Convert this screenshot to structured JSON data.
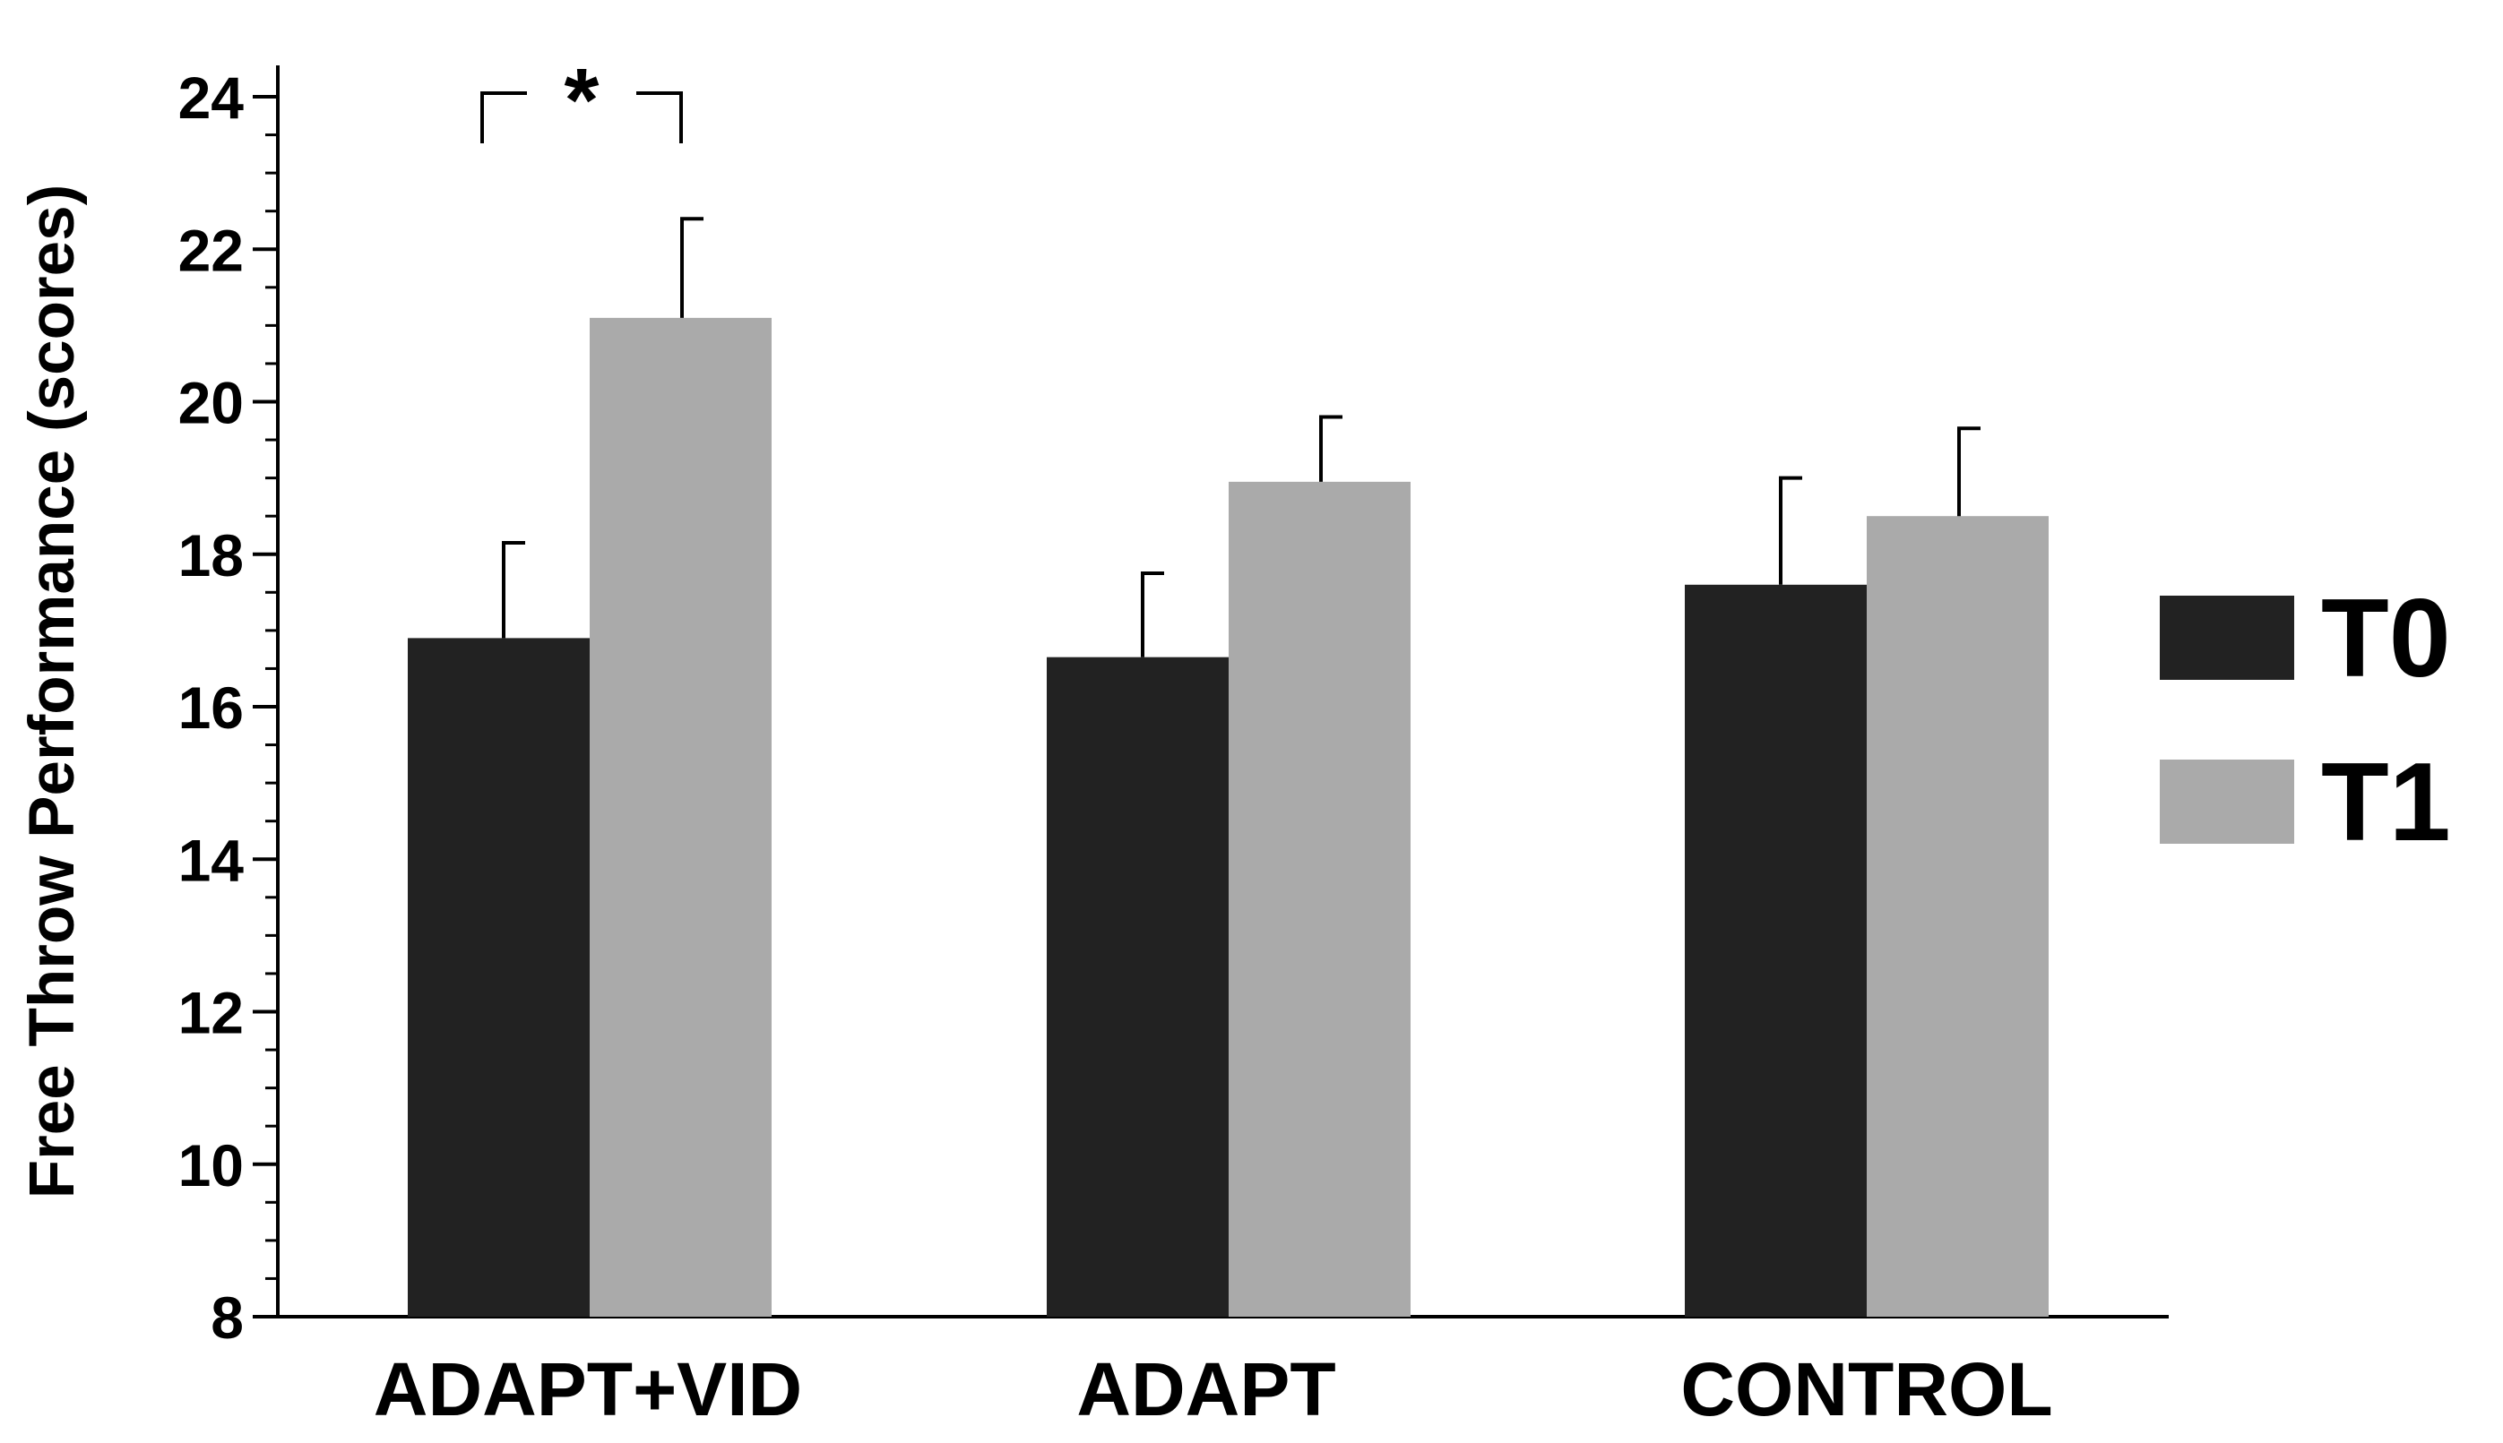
{
  "chart_data": {
    "type": "bar",
    "title": "",
    "xlabel": "",
    "ylabel": "Free Throw Performance (scores)",
    "ylim": [
      8,
      24
    ],
    "yticks": [
      8,
      10,
      12,
      14,
      16,
      18,
      20,
      22,
      24
    ],
    "y_minor_step": 0.5,
    "categories": [
      "ADAPT+VID",
      "ADAPT",
      "CONTROL"
    ],
    "series": [
      {
        "name": "T0",
        "color": "#222222",
        "values": [
          16.9,
          16.65,
          17.6
        ],
        "errors": [
          1.25,
          1.1,
          1.4
        ]
      },
      {
        "name": "T1",
        "color": "#aaaaaa",
        "values": [
          21.1,
          18.95,
          18.5
        ],
        "errors": [
          1.3,
          0.85,
          1.15
        ]
      }
    ],
    "legend": {
      "position": "right",
      "entries": [
        "T0",
        "T1"
      ]
    },
    "annotations": [
      {
        "text": "*",
        "category": "ADAPT+VID",
        "between": [
          "T0",
          "T1"
        ],
        "meaning": "significance bracket"
      }
    ]
  }
}
